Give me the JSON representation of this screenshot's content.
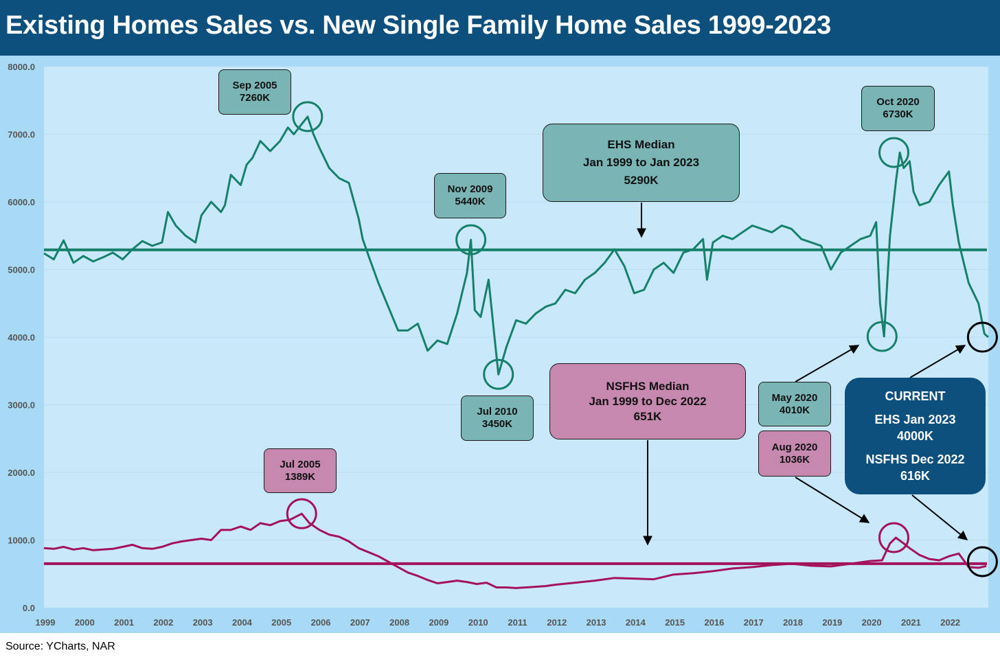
{
  "title": "Existing Homes Sales vs. New Single Family Home Sales 1999-2023",
  "source": "Source: YCharts, NAR",
  "callouts": {
    "sep2005": {
      "line1": "Sep 2005",
      "line2": "7260K"
    },
    "jul2005": {
      "line1": "Jul 2005",
      "line2": "1389K"
    },
    "nov2009": {
      "line1": "Nov 2009",
      "line2": "5440K"
    },
    "jul2010": {
      "line1": "Jul 2010",
      "line2": "3450K"
    },
    "ehs_median": {
      "line1": "EHS Median",
      "line2": "Jan 1999 to Jan 2023",
      "line3": "5290K"
    },
    "nsfhs_median": {
      "line1": "NSFHS Median",
      "line2": "Jan 1999 to Dec 2022",
      "line3": "651K"
    },
    "oct2020": {
      "line1": "Oct 2020",
      "line2": "6730K"
    },
    "may2020": {
      "line1": "May 2020",
      "line2": "4010K"
    },
    "aug2020": {
      "line1": "Aug 2020",
      "line2": "1036K"
    },
    "current": {
      "line1": "CURRENT",
      "line2": "EHS Jan 2023",
      "line3": "4000K",
      "line4": "NSFHS Dec 2022",
      "line5": "616K"
    }
  },
  "colors": {
    "ehs": "#17806a",
    "nsfhs": "#a3125a",
    "plot_bg": "#c9e9fb",
    "frame": "#a9daf5",
    "title_bar": "#0d4f7d"
  },
  "chart_data": {
    "type": "line",
    "title": "Existing Homes Sales vs. New Single Family Home Sales 1999-2023",
    "ylim": [
      0,
      8000
    ],
    "yticks": [
      "0.0",
      "1000.0",
      "2000.0",
      "3000.0",
      "4000.0",
      "5000.0",
      "6000.0",
      "7000.0",
      "8000.0"
    ],
    "xlim": [
      1999,
      2023
    ],
    "xticks": [
      "1999",
      "2000",
      "2001",
      "2002",
      "2003",
      "2004",
      "2005",
      "2006",
      "2007",
      "2008",
      "2009",
      "2010",
      "2011",
      "2012",
      "2013",
      "2014",
      "2015",
      "2016",
      "2017",
      "2018",
      "2019",
      "2020",
      "2021",
      "2022"
    ],
    "series": [
      {
        "name": "Existing Home Sales (K)",
        "color": "#17806a",
        "x": [
          1999.0,
          1999.25,
          1999.5,
          1999.75,
          2000.0,
          2000.25,
          2000.5,
          2000.75,
          2001.0,
          2001.25,
          2001.5,
          2001.75,
          2002.0,
          2002.15,
          2002.35,
          2002.6,
          2002.85,
          2003.0,
          2003.25,
          2003.5,
          2003.6,
          2003.75,
          2004.0,
          2004.15,
          2004.3,
          2004.5,
          2004.75,
          2005.0,
          2005.2,
          2005.35,
          2005.55,
          2005.7,
          2005.85,
          2006.0,
          2006.25,
          2006.5,
          2006.75,
          2007.0,
          2007.1,
          2007.25,
          2007.5,
          2007.75,
          2008.0,
          2008.25,
          2008.5,
          2008.75,
          2009.0,
          2009.25,
          2009.5,
          2009.75,
          2009.85,
          2009.95,
          2010.1,
          2010.3,
          2010.45,
          2010.55,
          2010.75,
          2011.0,
          2011.25,
          2011.5,
          2011.75,
          2012.0,
          2012.25,
          2012.5,
          2012.75,
          2013.0,
          2013.25,
          2013.5,
          2013.75,
          2014.0,
          2014.25,
          2014.5,
          2014.75,
          2015.0,
          2015.25,
          2015.5,
          2015.75,
          2015.85,
          2016.0,
          2016.25,
          2016.5,
          2016.75,
          2017.0,
          2017.25,
          2017.5,
          2017.75,
          2018.0,
          2018.25,
          2018.5,
          2018.75,
          2019.0,
          2019.25,
          2019.5,
          2019.75,
          2020.0,
          2020.15,
          2020.25,
          2020.35,
          2020.5,
          2020.65,
          2020.75,
          2020.85,
          2021.0,
          2021.1,
          2021.25,
          2021.5,
          2021.75,
          2022.0,
          2022.1,
          2022.25,
          2022.5,
          2022.75,
          2022.9,
          2023.0
        ],
        "values": [
          5240,
          5150,
          5430,
          5100,
          5200,
          5120,
          5180,
          5250,
          5150,
          5300,
          5420,
          5350,
          5400,
          5850,
          5650,
          5500,
          5400,
          5800,
          6000,
          5850,
          5950,
          6400,
          6250,
          6550,
          6650,
          6900,
          6750,
          6900,
          7100,
          7000,
          7150,
          7260,
          7000,
          6800,
          6500,
          6350,
          6280,
          5750,
          5450,
          5200,
          4800,
          4450,
          4100,
          4100,
          4200,
          3800,
          3950,
          3900,
          4350,
          4950,
          5440,
          4400,
          4300,
          4850,
          4000,
          3450,
          3850,
          4250,
          4200,
          4350,
          4450,
          4500,
          4700,
          4650,
          4850,
          4950,
          5100,
          5300,
          5050,
          4650,
          4700,
          5000,
          5100,
          4950,
          5250,
          5300,
          5450,
          4850,
          5400,
          5500,
          5450,
          5550,
          5650,
          5600,
          5550,
          5650,
          5600,
          5450,
          5400,
          5350,
          5000,
          5250,
          5350,
          5450,
          5500,
          5700,
          4500,
          4010,
          5500,
          6300,
          6730,
          6500,
          6600,
          6150,
          5950,
          6000,
          6250,
          6450,
          5950,
          5400,
          4800,
          4500,
          4050,
          4000
        ]
      },
      {
        "name": "New Single Family Home Sales (K)",
        "color": "#a3125a",
        "x": [
          1999.0,
          1999.25,
          1999.5,
          1999.75,
          2000.0,
          2000.25,
          2000.5,
          2000.75,
          2001.0,
          2001.25,
          2001.5,
          2001.75,
          2002.0,
          2002.25,
          2002.5,
          2002.75,
          2003.0,
          2003.25,
          2003.5,
          2003.75,
          2004.0,
          2004.25,
          2004.5,
          2004.75,
          2005.0,
          2005.25,
          2005.55,
          2005.75,
          2006.0,
          2006.25,
          2006.5,
          2006.75,
          2007.0,
          2007.25,
          2007.5,
          2007.75,
          2008.0,
          2008.25,
          2008.5,
          2008.75,
          2009.0,
          2009.25,
          2009.5,
          2009.75,
          2010.0,
          2010.25,
          2010.5,
          2010.75,
          2011.0,
          2011.25,
          2011.5,
          2011.75,
          2012.0,
          2012.5,
          2013.0,
          2013.5,
          2014.0,
          2014.5,
          2015.0,
          2015.5,
          2016.0,
          2016.5,
          2017.0,
          2017.5,
          2018.0,
          2018.5,
          2019.0,
          2019.5,
          2020.0,
          2020.3,
          2020.5,
          2020.65,
          2020.85,
          2021.0,
          2021.25,
          2021.5,
          2021.75,
          2022.0,
          2022.25,
          2022.5,
          2022.75,
          2022.95
        ],
        "values": [
          880,
          870,
          900,
          860,
          880,
          850,
          860,
          870,
          900,
          930,
          880,
          870,
          900,
          950,
          980,
          1000,
          1020,
          1000,
          1150,
          1150,
          1200,
          1150,
          1250,
          1220,
          1280,
          1300,
          1389,
          1250,
          1150,
          1080,
          1050,
          980,
          880,
          820,
          760,
          680,
          600,
          520,
          470,
          410,
          360,
          380,
          400,
          380,
          350,
          370,
          300,
          300,
          290,
          300,
          310,
          320,
          340,
          370,
          400,
          440,
          430,
          420,
          490,
          510,
          540,
          580,
          600,
          630,
          650,
          620,
          610,
          650,
          690,
          700,
          950,
          1036,
          950,
          880,
          780,
          720,
          700,
          760,
          800,
          600,
          590,
          616
        ]
      }
    ],
    "reference_lines": [
      {
        "name": "EHS Median",
        "value": 5290,
        "color": "#17806a"
      },
      {
        "name": "NSFHS Median",
        "value": 651,
        "color": "#a3125a"
      }
    ],
    "annotations": [
      "Sep 2005 7260K",
      "Jul 2005 1389K",
      "Nov 2009 5440K",
      "Jul 2010 3450K",
      "Oct 2020 6730K",
      "May 2020 4010K",
      "Aug 2020 1036K",
      "CURRENT EHS Jan 2023 4000K NSFHS Dec 2022 616K"
    ]
  }
}
